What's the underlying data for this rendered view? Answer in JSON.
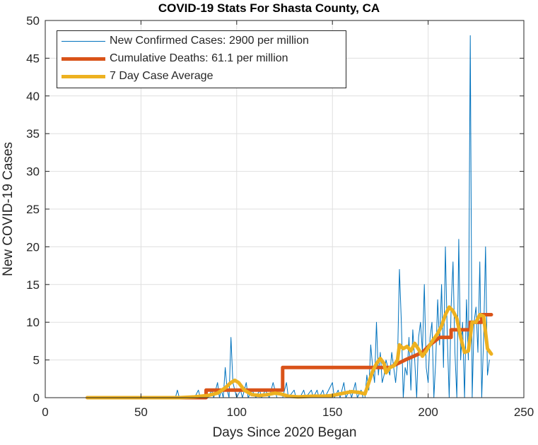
{
  "chart_data": {
    "type": "line",
    "title": "COVID-19 Stats For Shasta County, CA",
    "xlabel": "Days Since 2020 Began",
    "ylabel": "New COVID-19 Cases",
    "xlim": [
      0,
      250
    ],
    "ylim": [
      0,
      50
    ],
    "xticks": [
      0,
      50,
      100,
      150,
      200,
      250
    ],
    "yticks": [
      0,
      5,
      10,
      15,
      20,
      25,
      30,
      35,
      40,
      45,
      50
    ],
    "grid": true,
    "legend_position": "top-left",
    "series": [
      {
        "name": "New Confirmed Cases: 2900 per million",
        "color": "#0072BD",
        "line_width": "thin",
        "points": [
          [
            22,
            0
          ],
          [
            60,
            0
          ],
          [
            68,
            0
          ],
          [
            69,
            1
          ],
          [
            70,
            0
          ],
          [
            78,
            0
          ],
          [
            80,
            1
          ],
          [
            81,
            0
          ],
          [
            85,
            0
          ],
          [
            87,
            1
          ],
          [
            88,
            0
          ],
          [
            90,
            2
          ],
          [
            91,
            0
          ],
          [
            92,
            1
          ],
          [
            93,
            0
          ],
          [
            94,
            4
          ],
          [
            95,
            1
          ],
          [
            96,
            0
          ],
          [
            97,
            8
          ],
          [
            98,
            2
          ],
          [
            99,
            1
          ],
          [
            100,
            0
          ],
          [
            102,
            1
          ],
          [
            103,
            0
          ],
          [
            105,
            2
          ],
          [
            106,
            0
          ],
          [
            108,
            1
          ],
          [
            110,
            0
          ],
          [
            112,
            1
          ],
          [
            113,
            0
          ],
          [
            115,
            1
          ],
          [
            117,
            0
          ],
          [
            119,
            2
          ],
          [
            120,
            1
          ],
          [
            121,
            0
          ],
          [
            124,
            0
          ],
          [
            126,
            2
          ],
          [
            127,
            0
          ],
          [
            130,
            1
          ],
          [
            131,
            0
          ],
          [
            133,
            0
          ],
          [
            135,
            1
          ],
          [
            136,
            0
          ],
          [
            139,
            1
          ],
          [
            140,
            0
          ],
          [
            142,
            1
          ],
          [
            143,
            0
          ],
          [
            145,
            1
          ],
          [
            146,
            0
          ],
          [
            150,
            2
          ],
          [
            151,
            0
          ],
          [
            153,
            1
          ],
          [
            154,
            0
          ],
          [
            156,
            2
          ],
          [
            157,
            0
          ],
          [
            159,
            1
          ],
          [
            160,
            0
          ],
          [
            162,
            2
          ],
          [
            163,
            0
          ],
          [
            165,
            1
          ],
          [
            166,
            0
          ],
          [
            167,
            0
          ],
          [
            168,
            3
          ],
          [
            169,
            1
          ],
          [
            170,
            7
          ],
          [
            171,
            4
          ],
          [
            172,
            2
          ],
          [
            173,
            10
          ],
          [
            174,
            3
          ],
          [
            175,
            6
          ],
          [
            176,
            2
          ],
          [
            177,
            3
          ],
          [
            178,
            5
          ],
          [
            179,
            4
          ],
          [
            180,
            3
          ],
          [
            181,
            6
          ],
          [
            182,
            4
          ],
          [
            183,
            2
          ],
          [
            184,
            5
          ],
          [
            185,
            17
          ],
          [
            186,
            10
          ],
          [
            187,
            0
          ],
          [
            188,
            4
          ],
          [
            189,
            3
          ],
          [
            190,
            8
          ],
          [
            191,
            1
          ],
          [
            192,
            9
          ],
          [
            193,
            5
          ],
          [
            194,
            0
          ],
          [
            195,
            8
          ],
          [
            196,
            10
          ],
          [
            197,
            6
          ],
          [
            198,
            15
          ],
          [
            199,
            4
          ],
          [
            200,
            2
          ],
          [
            201,
            8
          ],
          [
            202,
            10
          ],
          [
            203,
            0
          ],
          [
            204,
            5
          ],
          [
            205,
            13
          ],
          [
            206,
            7
          ],
          [
            207,
            15
          ],
          [
            208,
            4
          ],
          [
            209,
            20
          ],
          [
            210,
            8
          ],
          [
            211,
            0
          ],
          [
            212,
            12
          ],
          [
            213,
            18
          ],
          [
            214,
            6
          ],
          [
            215,
            0
          ],
          [
            216,
            21
          ],
          [
            217,
            5
          ],
          [
            218,
            10
          ],
          [
            219,
            0
          ],
          [
            220,
            13
          ],
          [
            221,
            5
          ],
          [
            222,
            48
          ],
          [
            223,
            0
          ],
          [
            224,
            10
          ],
          [
            225,
            12
          ],
          [
            226,
            6
          ],
          [
            227,
            18
          ],
          [
            228,
            0
          ],
          [
            229,
            8
          ],
          [
            230,
            20
          ],
          [
            231,
            3
          ],
          [
            232,
            5
          ]
        ]
      },
      {
        "name": "Cumulative Deaths: 61.1 per million",
        "color": "#D95319",
        "line_width": "thick",
        "points": [
          [
            22,
            0
          ],
          [
            84,
            0
          ],
          [
            84,
            1
          ],
          [
            124,
            1
          ],
          [
            124,
            4
          ],
          [
            180,
            4
          ],
          [
            188,
            5
          ],
          [
            197,
            6
          ],
          [
            201,
            7
          ],
          [
            206,
            8
          ],
          [
            212,
            8
          ],
          [
            212,
            9
          ],
          [
            222,
            9
          ],
          [
            222,
            10
          ],
          [
            228,
            10
          ],
          [
            228,
            11
          ],
          [
            233,
            11
          ]
        ]
      },
      {
        "name": "7 Day Case Average",
        "color": "#EDB120",
        "line_width": "thick",
        "points": [
          [
            22,
            0
          ],
          [
            70,
            0
          ],
          [
            78,
            0.1
          ],
          [
            85,
            0.3
          ],
          [
            90,
            0.6
          ],
          [
            94,
            1.3
          ],
          [
            97,
            2.0
          ],
          [
            99,
            2.3
          ],
          [
            101,
            2.0
          ],
          [
            104,
            1.0
          ],
          [
            108,
            0.4
          ],
          [
            112,
            0.3
          ],
          [
            116,
            0.4
          ],
          [
            120,
            0.6
          ],
          [
            123,
            0.5
          ],
          [
            127,
            0.2
          ],
          [
            132,
            0.1
          ],
          [
            140,
            0.2
          ],
          [
            146,
            0.2
          ],
          [
            150,
            0.3
          ],
          [
            156,
            0.6
          ],
          [
            160,
            0.8
          ],
          [
            164,
            0.7
          ],
          [
            167,
            0.5
          ],
          [
            169,
            2.0
          ],
          [
            171,
            3.5
          ],
          [
            173,
            4.5
          ],
          [
            175,
            5.2
          ],
          [
            177,
            4.5
          ],
          [
            178,
            3.3
          ],
          [
            180,
            4.0
          ],
          [
            182,
            4.2
          ],
          [
            184,
            5.0
          ],
          [
            185,
            7.0
          ],
          [
            187,
            6.5
          ],
          [
            189,
            6.8
          ],
          [
            191,
            6.2
          ],
          [
            193,
            7.2
          ],
          [
            195,
            6.4
          ],
          [
            197,
            5.5
          ],
          [
            199,
            6.2
          ],
          [
            201,
            7.0
          ],
          [
            203,
            7.8
          ],
          [
            205,
            8.5
          ],
          [
            207,
            9.5
          ],
          [
            209,
            11.0
          ],
          [
            211,
            12.0
          ],
          [
            213,
            11.5
          ],
          [
            215,
            10.5
          ],
          [
            217,
            8.0
          ],
          [
            219,
            6.0
          ],
          [
            221,
            6.2
          ],
          [
            223,
            10.0
          ],
          [
            225,
            10.0
          ],
          [
            227,
            11.0
          ],
          [
            229,
            10.8
          ],
          [
            231,
            6.5
          ],
          [
            233,
            5.8
          ]
        ]
      }
    ]
  }
}
